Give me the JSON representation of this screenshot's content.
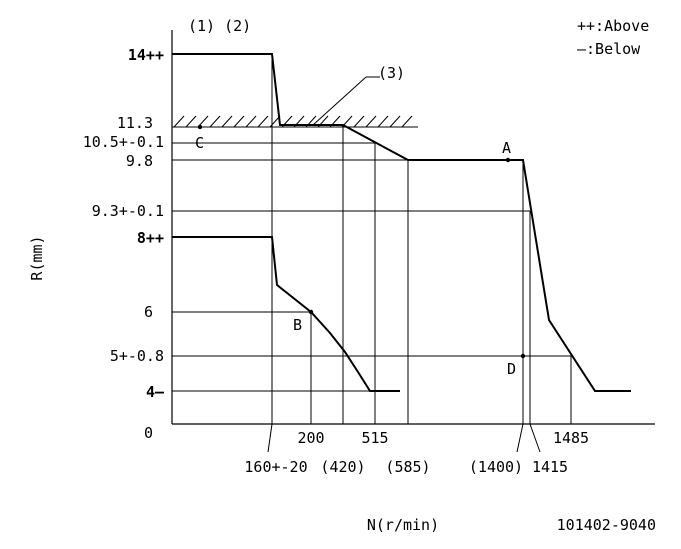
{
  "header": {
    "notes": "(1) (2)",
    "legend_above": "++:Above",
    "legend_below": "—:Below"
  },
  "axes": {
    "ylabel": "R(mm)",
    "xlabel": "N(r/min)",
    "y_ticks": [
      "14++",
      "11.3",
      "10.5+-0.1",
      "9.8",
      "9.3+-0.1",
      "8++",
      "6",
      "5+-0.8",
      "4—",
      "0"
    ],
    "x_ticks": [
      "160+-20",
      "200",
      "(420)",
      "515",
      "(585)",
      "(1400)",
      "1415",
      "1485"
    ]
  },
  "points": {
    "a": "A",
    "b": "B",
    "c": "C",
    "d": "D",
    "callout": "(3)"
  },
  "footer": {
    "code": "101402-9040"
  }
}
